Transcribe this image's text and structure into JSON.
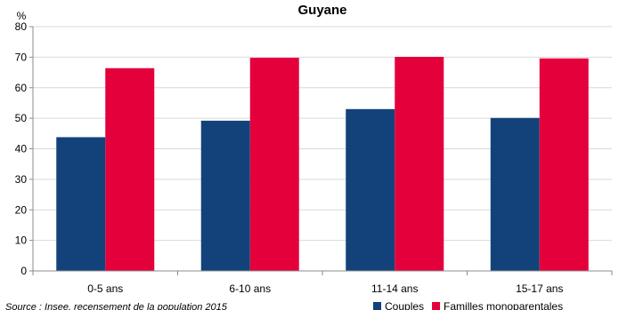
{
  "chart_data": {
    "type": "bar",
    "title": "Guyane",
    "ylabel": "%",
    "xlabel": "",
    "categories": [
      "0-5 ans",
      "6-10 ans",
      "11-14 ans",
      "15-17 ans"
    ],
    "series": [
      {
        "name": "Couples",
        "color": "#13427a",
        "values": [
          43.8,
          49.2,
          53.0,
          50.1
        ]
      },
      {
        "name": "Familles monoparentales",
        "color": "#e4003b",
        "values": [
          66.4,
          69.8,
          70.1,
          69.6
        ]
      }
    ],
    "ylim": [
      0,
      80
    ],
    "yticks": [
      0,
      10,
      20,
      30,
      40,
      50,
      60,
      70,
      80
    ],
    "grid": true,
    "legend_position": "bottom-right",
    "source": "Source : Insee, recensement de la population 2015"
  }
}
